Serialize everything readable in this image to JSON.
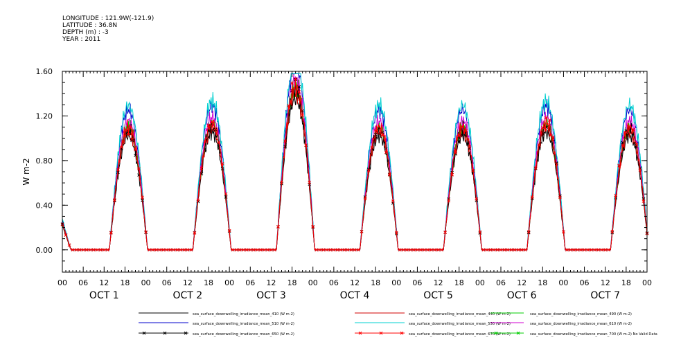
{
  "header": {
    "longitude": "LONGITUDE : 121.9W(-121.9)",
    "latitude": "LATITUDE : 36.8N",
    "depth": "DEPTH (m) : -3",
    "year": "YEAR : 2011"
  },
  "chart_data": {
    "type": "line",
    "ylabel": "W m-2",
    "ylim": [
      -0.2,
      1.6
    ],
    "yticks": [
      "0.00",
      "0.40",
      "0.80",
      "1.20",
      "1.60"
    ],
    "ytick_values": [
      0.0,
      0.4,
      0.8,
      1.2,
      1.6
    ],
    "xlim_hours": [
      0,
      168
    ],
    "xtick_labels": [
      "00",
      "06",
      "12",
      "18",
      "00",
      "06",
      "12",
      "18",
      "00",
      "06",
      "12",
      "18",
      "00",
      "06",
      "12",
      "18",
      "00",
      "06",
      "12",
      "18",
      "00",
      "06",
      "12",
      "18",
      "00",
      "06",
      "12",
      "18",
      "00"
    ],
    "day_labels": [
      "OCT 1",
      "OCT 2",
      "OCT 3",
      "OCT 4",
      "OCT 5",
      "OCT 6",
      "OCT 7"
    ],
    "grid": false,
    "legend_position": "bottom",
    "daily_peak_black": [
      1.02,
      1.05,
      1.35,
      1.02,
      1.02,
      1.05,
      1.02
    ],
    "series": [
      {
        "name": "sea_surface_downwelling_irradiance_mean_410 (W m-2)",
        "color": "#000000",
        "scale": 1.0,
        "marker": "none"
      },
      {
        "name": "sea_surface_downwelling_irradiance_mean_440 (W m-2)",
        "color": "#d00000",
        "scale": 1.04,
        "marker": "none"
      },
      {
        "name": "sea_surface_downwelling_irradiance_mean_490 (W m-2)",
        "color": "#00cc00",
        "scale": 1.09,
        "marker": "none"
      },
      {
        "name": "sea_surface_downwelling_irradiance_mean_510 (W m-2)",
        "color": "#0000cc",
        "scale": 1.23,
        "marker": "none"
      },
      {
        "name": "sea_surface_downwelling_irradiance_mean_550 (W m-2)",
        "color": "#00d0d0",
        "scale": 1.27,
        "marker": "none"
      },
      {
        "name": "sea_surface_downwelling_irradiance_mean_610 (W m-2)",
        "color": "#d000d0",
        "scale": 1.13,
        "marker": "none"
      },
      {
        "name": "sea_surface_downwelling_irradiance_mean_650 (W m-2)",
        "color": "#000000",
        "scale": 1.06,
        "marker": "x"
      },
      {
        "name": "sea_surface_downwelling_irradiance_mean_670 (W m-2)",
        "color": "#ff0000",
        "scale": 1.08,
        "marker": "x"
      },
      {
        "name": "sea_surface_downwelling_irradiance_mean_700 (W m-2) No Valid Data",
        "color": "#00cc00",
        "scale": 0,
        "marker": "x"
      }
    ]
  }
}
